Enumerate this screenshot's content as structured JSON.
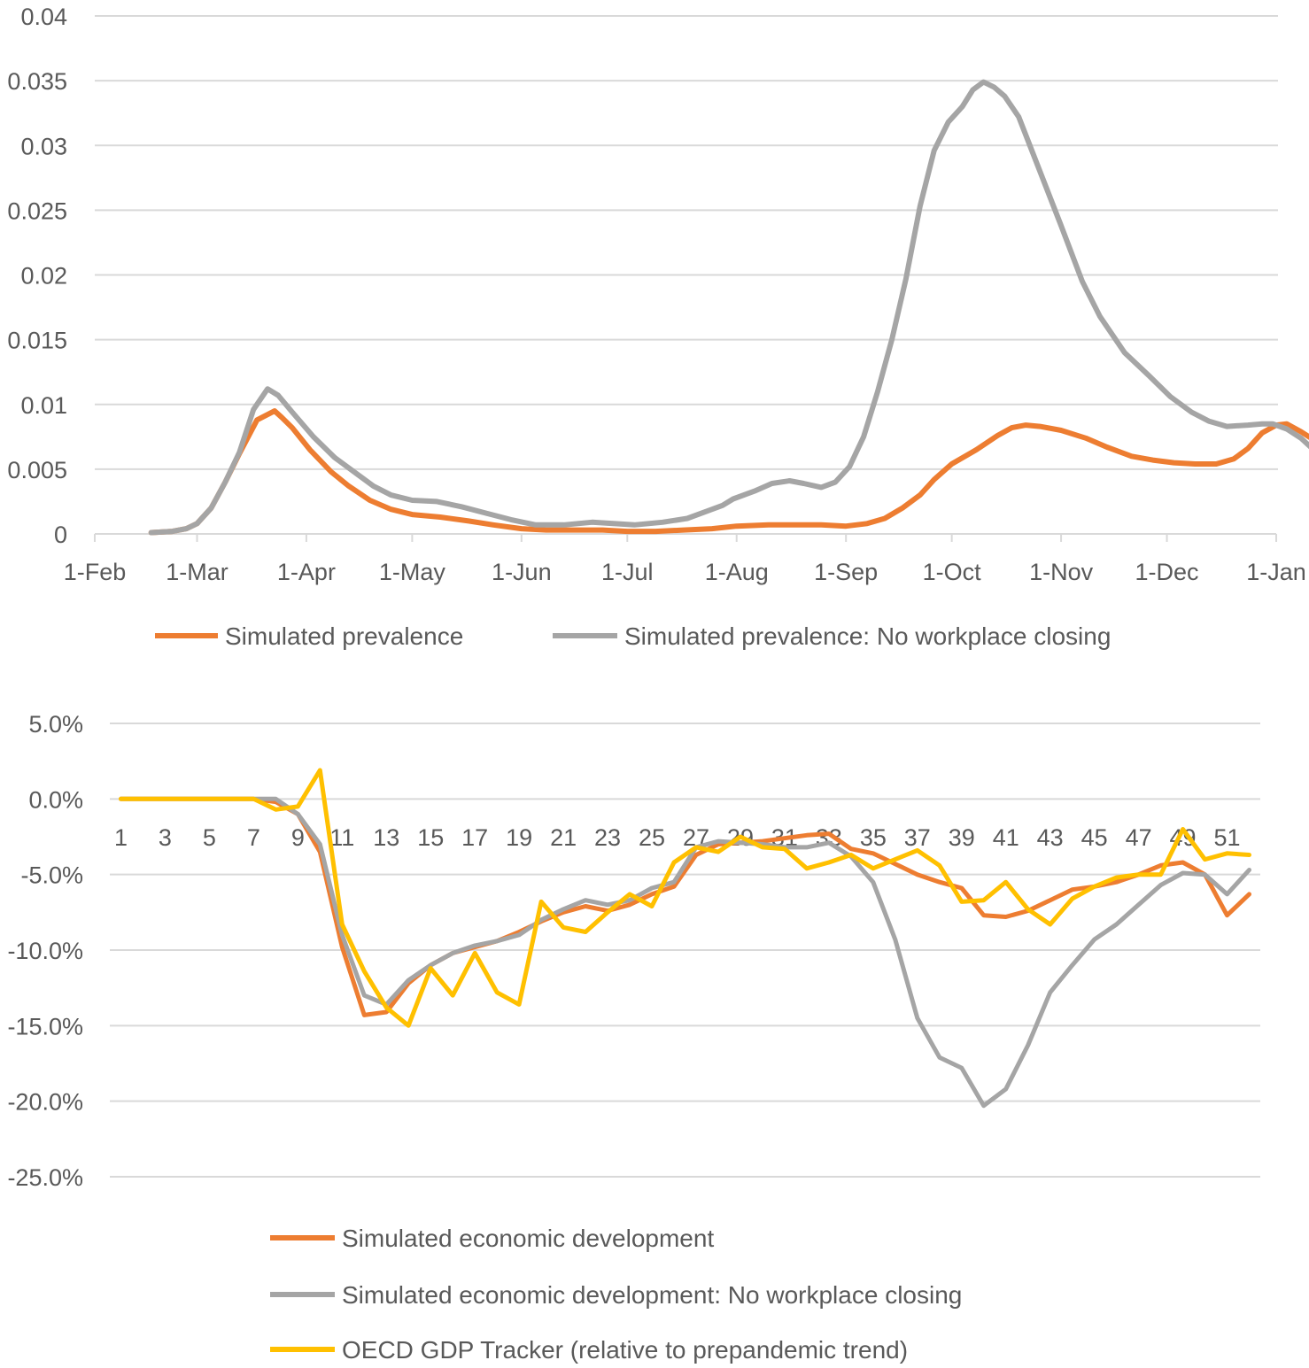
{
  "chart_data": [
    {
      "type": "line",
      "title": "",
      "xlabel": "",
      "ylabel": "",
      "ylim": [
        0,
        0.04
      ],
      "y_ticks": [
        "0",
        "0.005",
        "0.01",
        "0.015",
        "0.02",
        "0.025",
        "0.03",
        "0.035",
        "0.04"
      ],
      "x_tick_labels": [
        "1-Feb",
        "1-Mar",
        "1-Apr",
        "1-May",
        "1-Jun",
        "1-Jul",
        "1-Aug",
        "1-Sep",
        "1-Oct",
        "1-Nov",
        "1-Dec",
        "1-Jan"
      ],
      "x_tick_days": [
        0,
        29,
        60,
        90,
        121,
        151,
        182,
        213,
        243,
        274,
        304,
        335
      ],
      "xlim_days": [
        0,
        335
      ],
      "legend": [
        "Simulated prevalence",
        "Simulated prevalence: No workplace closing"
      ],
      "legend_position": "bottom",
      "series": [
        {
          "name": "Simulated prevalence",
          "color": "#ED7D31",
          "points": [
            [
              16,
              0.0001
            ],
            [
              22,
              0.0002
            ],
            [
              26,
              0.0004
            ],
            [
              29,
              0.0008
            ],
            [
              33,
              0.002
            ],
            [
              37,
              0.004
            ],
            [
              41,
              0.0062
            ],
            [
              46,
              0.0088
            ],
            [
              51,
              0.0095
            ],
            [
              53,
              0.009
            ],
            [
              56,
              0.0082
            ],
            [
              61,
              0.0065
            ],
            [
              67,
              0.0048
            ],
            [
              72,
              0.0037
            ],
            [
              78,
              0.0026
            ],
            [
              84,
              0.0019
            ],
            [
              90,
              0.0015
            ],
            [
              98,
              0.0013
            ],
            [
              106,
              0.001
            ],
            [
              113,
              0.0007
            ],
            [
              121,
              0.0004
            ],
            [
              128,
              0.0003
            ],
            [
              136,
              0.0003
            ],
            [
              144,
              0.0003
            ],
            [
              151,
              0.0002
            ],
            [
              159,
              0.0002
            ],
            [
              167,
              0.0003
            ],
            [
              175,
              0.0004
            ],
            [
              182,
              0.0006
            ],
            [
              191,
              0.0007
            ],
            [
              198,
              0.0007
            ],
            [
              206,
              0.0007
            ],
            [
              213,
              0.0006
            ],
            [
              219,
              0.0008
            ],
            [
              224,
              0.0012
            ],
            [
              229,
              0.002
            ],
            [
              234,
              0.003
            ],
            [
              238,
              0.0042
            ],
            [
              243,
              0.0054
            ],
            [
              250,
              0.0065
            ],
            [
              256,
              0.0076
            ],
            [
              260,
              0.0082
            ],
            [
              264,
              0.0084
            ],
            [
              268,
              0.0083
            ],
            [
              274,
              0.008
            ],
            [
              281,
              0.0074
            ],
            [
              287,
              0.0067
            ],
            [
              294,
              0.006
            ],
            [
              300,
              0.0057
            ],
            [
              306,
              0.0055
            ],
            [
              312,
              0.0054
            ],
            [
              318,
              0.0054
            ],
            [
              323,
              0.0058
            ],
            [
              327,
              0.0066
            ],
            [
              331,
              0.0078
            ],
            [
              335,
              0.0084
            ],
            [
              338,
              0.0085
            ],
            [
              342,
              0.0079
            ],
            [
              346,
              0.0072
            ],
            [
              350,
              0.0066
            ]
          ]
        },
        {
          "name": "Simulated prevalence: No workplace closing",
          "color": "#A5A5A5",
          "points": [
            [
              16,
              0.0001
            ],
            [
              22,
              0.0002
            ],
            [
              26,
              0.0004
            ],
            [
              29,
              0.0008
            ],
            [
              33,
              0.002
            ],
            [
              37,
              0.004
            ],
            [
              41,
              0.0063
            ],
            [
              45,
              0.0096
            ],
            [
              49,
              0.0112
            ],
            [
              52,
              0.0107
            ],
            [
              56,
              0.0094
            ],
            [
              62,
              0.0075
            ],
            [
              68,
              0.0059
            ],
            [
              74,
              0.0047
            ],
            [
              79,
              0.0037
            ],
            [
              84,
              0.003
            ],
            [
              90,
              0.0026
            ],
            [
              97,
              0.0025
            ],
            [
              104,
              0.0021
            ],
            [
              111,
              0.0016
            ],
            [
              118,
              0.0011
            ],
            [
              125,
              0.0007
            ],
            [
              133,
              0.0007
            ],
            [
              141,
              0.0009
            ],
            [
              147,
              0.0008
            ],
            [
              153,
              0.0007
            ],
            [
              161,
              0.0009
            ],
            [
              168,
              0.0012
            ],
            [
              174,
              0.0018
            ],
            [
              178,
              0.0022
            ],
            [
              181,
              0.0027
            ],
            [
              187,
              0.0033
            ],
            [
              192,
              0.0039
            ],
            [
              197,
              0.0041
            ],
            [
              201,
              0.0039
            ],
            [
              206,
              0.0036
            ],
            [
              210,
              0.004
            ],
            [
              214,
              0.0052
            ],
            [
              218,
              0.0075
            ],
            [
              222,
              0.011
            ],
            [
              226,
              0.015
            ],
            [
              230,
              0.0197
            ],
            [
              234,
              0.0253
            ],
            [
              238,
              0.0296
            ],
            [
              242,
              0.0318
            ],
            [
              246,
              0.033
            ],
            [
              249,
              0.0343
            ],
            [
              252,
              0.0349
            ],
            [
              255,
              0.0345
            ],
            [
              258,
              0.0338
            ],
            [
              262,
              0.0322
            ],
            [
              268,
              0.028
            ],
            [
              274,
              0.0238
            ],
            [
              280,
              0.0195
            ],
            [
              285,
              0.0168
            ],
            [
              292,
              0.014
            ],
            [
              299,
              0.0122
            ],
            [
              305,
              0.0106
            ],
            [
              311,
              0.0094
            ],
            [
              316,
              0.0087
            ],
            [
              321,
              0.0083
            ],
            [
              327,
              0.0084
            ],
            [
              331,
              0.0085
            ],
            [
              334,
              0.0085
            ],
            [
              338,
              0.0081
            ],
            [
              342,
              0.0074
            ],
            [
              346,
              0.0064
            ],
            [
              350,
              0.0056
            ]
          ]
        }
      ]
    },
    {
      "type": "line",
      "title": "",
      "xlabel": "",
      "ylabel": "",
      "ylim": [
        -0.25,
        0.05
      ],
      "y_ticks": [
        "5.0%",
        "0.0%",
        "-5.0%",
        "-10.0%",
        "-15.0%",
        "-20.0%",
        "-25.0%"
      ],
      "x_tick_labels": [
        "1",
        "3",
        "5",
        "7",
        "9",
        "11",
        "13",
        "15",
        "17",
        "19",
        "21",
        "23",
        "25",
        "27",
        "29",
        "31",
        "33",
        "35",
        "37",
        "39",
        "41",
        "43",
        "45",
        "47",
        "49",
        "51"
      ],
      "x_categories_count": 52,
      "legend": [
        "Simulated economic development",
        "Simulated economic development: No workplace closing",
        "OECD GDP Tracker (relative to prepandemic trend)"
      ],
      "legend_position": "bottom",
      "series": [
        {
          "name": "Simulated economic development",
          "color": "#ED7D31",
          "values": [
            0.0,
            0.0,
            0.0,
            0.0,
            0.0,
            0.0,
            0.0,
            -0.002,
            -0.01,
            -0.035,
            -0.098,
            -0.143,
            -0.141,
            -0.122,
            -0.11,
            -0.102,
            -0.098,
            -0.094,
            -0.088,
            -0.081,
            -0.075,
            -0.071,
            -0.074,
            -0.07,
            -0.063,
            -0.058,
            -0.037,
            -0.03,
            -0.029,
            -0.028,
            -0.026,
            -0.024,
            -0.023,
            -0.033,
            -0.036,
            -0.043,
            -0.05,
            -0.055,
            -0.059,
            -0.077,
            -0.078,
            -0.074,
            -0.067,
            -0.06,
            -0.058,
            -0.055,
            -0.05,
            -0.044,
            -0.042,
            -0.05,
            -0.077,
            -0.063
          ]
        },
        {
          "name": "Simulated economic development: No workplace closing",
          "color": "#A5A5A5",
          "values": [
            0.0,
            0.0,
            0.0,
            0.0,
            0.0,
            0.0,
            0.0,
            0.0,
            -0.01,
            -0.03,
            -0.09,
            -0.13,
            -0.136,
            -0.12,
            -0.11,
            -0.102,
            -0.097,
            -0.094,
            -0.09,
            -0.08,
            -0.073,
            -0.067,
            -0.07,
            -0.067,
            -0.059,
            -0.055,
            -0.032,
            -0.028,
            -0.029,
            -0.03,
            -0.032,
            -0.032,
            -0.029,
            -0.038,
            -0.055,
            -0.093,
            -0.145,
            -0.171,
            -0.178,
            -0.203,
            -0.192,
            -0.163,
            -0.128,
            -0.11,
            -0.093,
            -0.083,
            -0.07,
            -0.057,
            -0.049,
            -0.05,
            -0.063,
            -0.047
          ]
        },
        {
          "name": "OECD GDP Tracker (relative to prepandemic trend)",
          "color": "#FFC000",
          "values": [
            0.0,
            0.0,
            0.0,
            0.0,
            0.0,
            0.0,
            0.0,
            -0.007,
            -0.005,
            0.019,
            -0.083,
            -0.114,
            -0.138,
            -0.15,
            -0.112,
            -0.13,
            -0.102,
            -0.128,
            -0.136,
            -0.068,
            -0.085,
            -0.088,
            -0.075,
            -0.063,
            -0.071,
            -0.042,
            -0.032,
            -0.035,
            -0.025,
            -0.032,
            -0.033,
            -0.046,
            -0.042,
            -0.037,
            -0.046,
            -0.04,
            -0.034,
            -0.044,
            -0.068,
            -0.067,
            -0.055,
            -0.073,
            -0.083,
            -0.066,
            -0.058,
            -0.052,
            -0.05,
            -0.05,
            -0.02,
            -0.04,
            -0.036,
            -0.037
          ]
        }
      ]
    }
  ]
}
